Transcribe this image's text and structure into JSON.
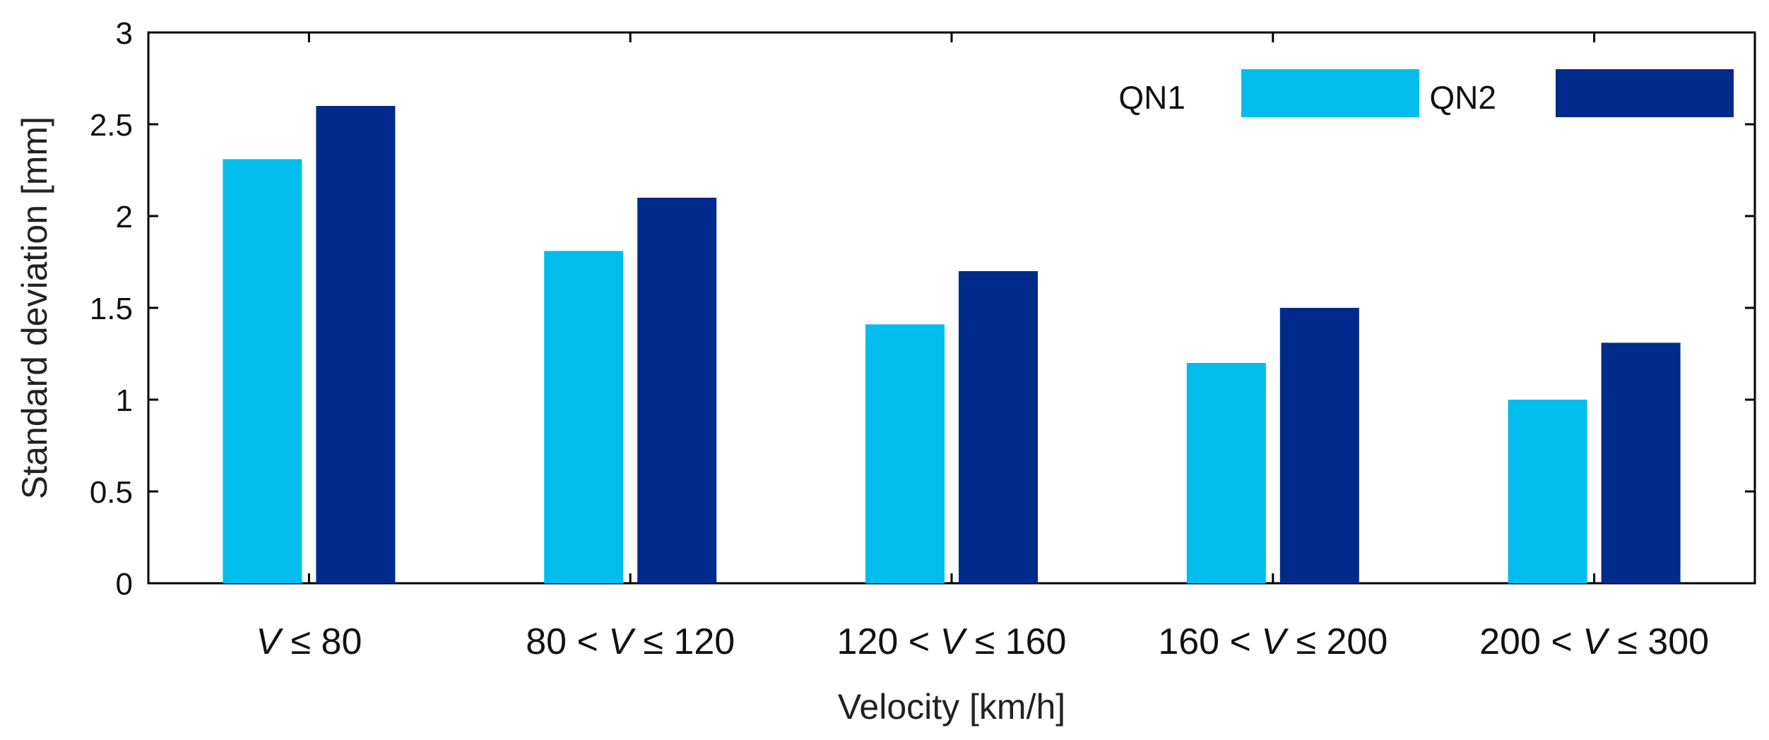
{
  "chart_data": {
    "type": "bar",
    "title": "",
    "xlabel": "Velocity [km/h]",
    "ylabel": "Standard deviation [mm]",
    "ylim": [
      0,
      3
    ],
    "yticks": [
      0,
      0.5,
      1,
      1.5,
      2,
      2.5,
      3
    ],
    "ytick_labels": [
      "0",
      "0.5",
      "1",
      "1.5",
      "2",
      "2.5",
      "3"
    ],
    "grid": false,
    "legend_position": "top-right",
    "categories": [
      "V ≤ 80",
      "80 < V ≤ 120",
      "120 < V ≤ 160",
      "160 < V ≤ 200",
      "200 < V ≤ 300"
    ],
    "category_parts": [
      {
        "prefix": "",
        "var": "V",
        "suffix": " ≤ 80"
      },
      {
        "prefix": "80 < ",
        "var": "V",
        "suffix": " ≤ 120"
      },
      {
        "prefix": "120 < ",
        "var": "V",
        "suffix": " ≤ 160"
      },
      {
        "prefix": "160 < ",
        "var": "V",
        "suffix": " ≤ 200"
      },
      {
        "prefix": "200 < ",
        "var": "V",
        "suffix": " ≤ 300"
      }
    ],
    "series": [
      {
        "name": "QN1",
        "color": "#00BDEE",
        "values": [
          2.31,
          1.81,
          1.41,
          1.2,
          1.0
        ]
      },
      {
        "name": "QN2",
        "color": "#002A8C",
        "values": [
          2.6,
          2.1,
          1.7,
          1.5,
          1.31
        ]
      }
    ],
    "colors": {
      "ytick_text": "#111111",
      "axis_title": "#222222",
      "axis_line": "#000000"
    }
  }
}
